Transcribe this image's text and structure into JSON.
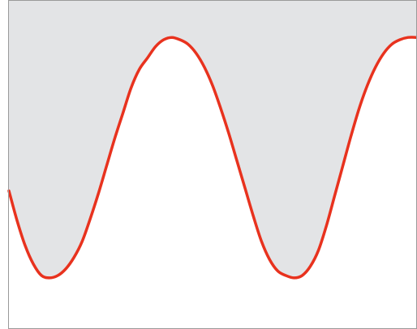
{
  "chart_data": {
    "type": "line",
    "title": "",
    "xlabel": "",
    "ylabel": "",
    "x": [
      0,
      0.2,
      0.4,
      0.6,
      0.8,
      1,
      1.2,
      1.4,
      1.6,
      1.8,
      2,
      2.2,
      2.4,
      2.6,
      2.8,
      3,
      3.2,
      3.4,
      3.6,
      3.8,
      4,
      4.2,
      4.4,
      4.6,
      4.8,
      5,
      5.2,
      5.4,
      5.6,
      5.8,
      6,
      6.2,
      6.4,
      6.6,
      6.8,
      7,
      7.2,
      7.4,
      7.6,
      7.8,
      8,
      8.2,
      8.4,
      8.6,
      8.8,
      9,
      9.2,
      9.4,
      9.6,
      9.8,
      10
    ],
    "series": [
      {
        "values": [
          0.28,
          0.15,
          0.04,
          -0.04,
          -0.09,
          -0.1,
          -0.09,
          -0.06,
          -0.01,
          0.06,
          0.16,
          0.27,
          0.39,
          0.51,
          0.62,
          0.73,
          0.81,
          0.86,
          0.91,
          0.94,
          0.95,
          0.94,
          0.92,
          0.88,
          0.82,
          0.74,
          0.64,
          0.53,
          0.41,
          0.29,
          0.17,
          0.06,
          -0.02,
          -0.07,
          -0.09,
          -0.1,
          -0.09,
          -0.05,
          0.02,
          0.13,
          0.26,
          0.39,
          0.52,
          0.64,
          0.74,
          0.82,
          0.88,
          0.92,
          0.94,
          0.95,
          0.95
        ],
        "color": "#e8321e"
      }
    ],
    "fill_above_color": "#e3e4e6",
    "fill_below_color": "#ffffff",
    "grid": false,
    "legend": "none"
  }
}
